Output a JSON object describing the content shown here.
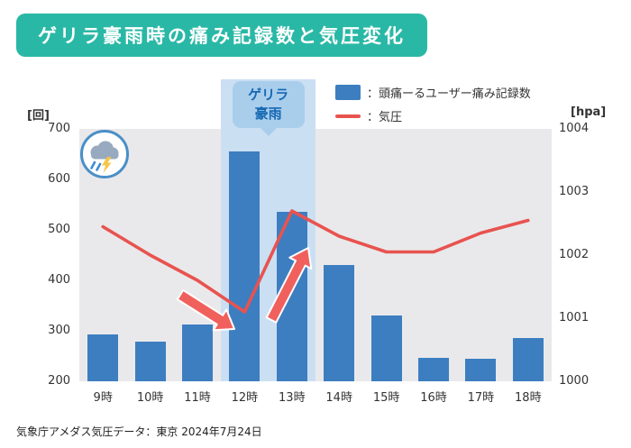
{
  "title": "ゲリラ豪雨時の痛み記録数と気圧変化",
  "legend": [
    {
      "series": "pain_records",
      "label": "：頭痛ーるユーザー痛み記録数"
    },
    {
      "series": "pressure",
      "label": "：気圧"
    }
  ],
  "annotation": {
    "band_label": "ゲリラ豪雨",
    "storm_icon": "storm-cloud-lightning-icon"
  },
  "footer": "気象庁アメダス気圧データ：東京 2024年7月24日",
  "colors": {
    "title_bg": "#2ab8a6",
    "bar": "#3d7ec0",
    "line": "#e8534f",
    "plot_bg": "#e9e9eb",
    "band": "#cbdff3",
    "band_label_bg": "#a9ceec",
    "band_label_text": "#1668b3",
    "arrow": "#f0605c"
  },
  "chart_data": {
    "type": "bar",
    "combo": "bar+line dual axis",
    "title": "ゲリラ豪雨時の痛み記録数と気圧変化",
    "categories": [
      "9時",
      "10時",
      "11時",
      "12時",
      "13時",
      "14時",
      "15時",
      "16時",
      "17時",
      "18時"
    ],
    "series": [
      {
        "name": "頭痛ーるユーザー痛み記録数",
        "type": "bar",
        "axis": "left",
        "values": [
          292,
          278,
          313,
          655,
          535,
          430,
          330,
          247,
          245,
          285
        ]
      },
      {
        "name": "気圧",
        "type": "line",
        "axis": "right",
        "values": [
          1002.45,
          1002.0,
          1001.6,
          1001.1,
          1002.7,
          1002.3,
          1002.05,
          1002.05,
          1002.35,
          1002.55
        ]
      }
    ],
    "left_axis": {
      "unit": "[回]",
      "min": 200,
      "max": 700,
      "ticks": [
        700,
        600,
        500,
        400,
        300,
        200
      ]
    },
    "right_axis": {
      "unit": "[hpa]",
      "min": 1000,
      "max": 1004,
      "ticks": [
        1004,
        1003,
        1002,
        1001,
        1000
      ]
    },
    "highlight_band": {
      "from": "12時",
      "to": "13時",
      "label": "ゲリラ豪雨"
    },
    "grid": false,
    "legend_position": "top-right"
  }
}
